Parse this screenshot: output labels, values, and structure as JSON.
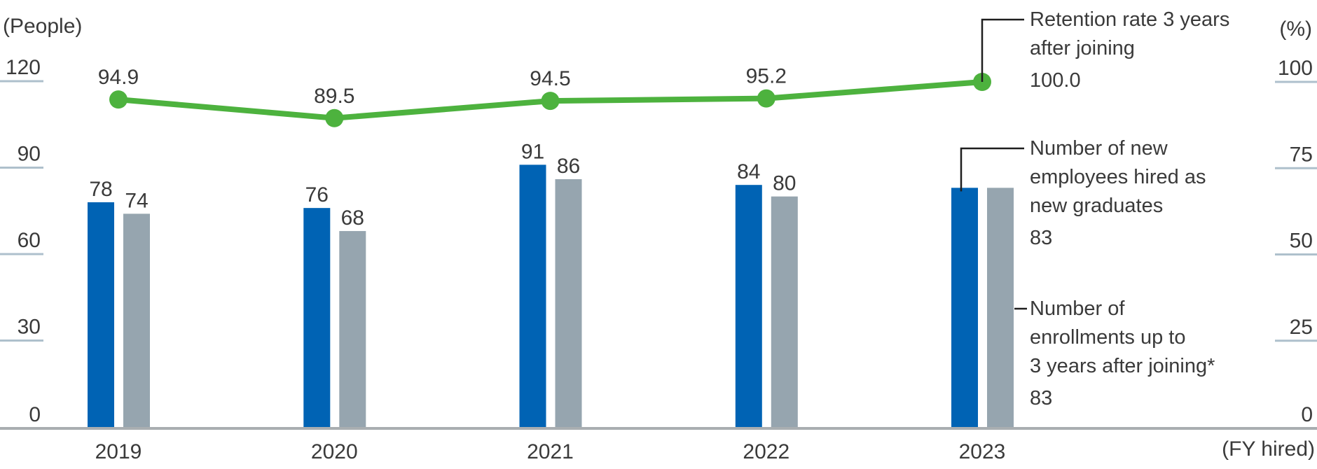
{
  "chart_data": {
    "type": "bar",
    "subtype": "grouped-bars-with-line-combo",
    "categories": [
      "2019",
      "2020",
      "2021",
      "2022",
      "2023"
    ],
    "series": [
      {
        "name": "Number of new employees hired as new graduates",
        "type": "bar",
        "axis": "left",
        "color": "#0063b4",
        "values": [
          78,
          76,
          91,
          84,
          83
        ]
      },
      {
        "name": "Number of enrollments up to 3 years after joining*",
        "type": "bar",
        "axis": "left",
        "color": "#96a5af",
        "values": [
          74,
          68,
          86,
          80,
          83
        ]
      },
      {
        "name": "Retention rate 3 years after joining",
        "type": "line",
        "axis": "right",
        "color": "#4db23e",
        "values": [
          94.9,
          89.5,
          94.5,
          95.2,
          100.0
        ]
      }
    ],
    "left_axis": {
      "unit": "(People)",
      "ticks": [
        0,
        30,
        60,
        90,
        120
      ],
      "range": [
        0,
        120
      ]
    },
    "right_axis": {
      "unit": "(%)",
      "ticks": [
        0,
        25,
        50,
        75,
        100
      ],
      "range": [
        0,
        100
      ]
    },
    "x_axis": {
      "unit": "(FY hired)"
    },
    "grid": "short edge ticks only, no full gridlines",
    "legend_position": "right, with callout lines to last data points",
    "note": "values of the last category (2023) are shown in the legend callouts instead of on the chart"
  },
  "legend": {
    "retention": {
      "line1": "Retention rate 3 years",
      "line2": "after joining",
      "value": "100.0"
    },
    "new_graduates": {
      "line1": "Number of new",
      "line2": "employees hired as",
      "line3": "new graduates",
      "value": "83"
    },
    "enrollments": {
      "line1": "Number of",
      "line2": "enrollments up to",
      "line3": "3 years after joining*",
      "value": "83"
    }
  },
  "colors": {
    "bar_blue": "#0063b4",
    "bar_gray": "#96a5af",
    "line_green": "#4db23e",
    "tick_line": "#aec0cc",
    "axis_line": "#a9aeb1",
    "callout_line": "#1e1e1e",
    "text": "#3a3a3a"
  }
}
